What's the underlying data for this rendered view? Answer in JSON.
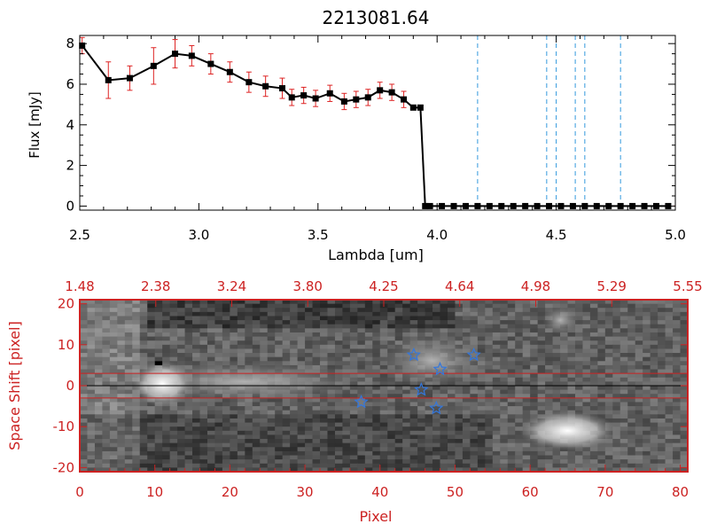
{
  "chart_data": [
    {
      "type": "line",
      "title": "2213081.64",
      "xlabel": "Lambda [um]",
      "ylabel": "Flux [mJy]",
      "xlim": [
        2.5,
        5.0
      ],
      "ylim": [
        -0.2,
        8.4
      ],
      "xticks": [
        "2.5",
        "3.0",
        "3.5",
        "4.0",
        "4.5",
        "5.0"
      ],
      "yticks": [
        "0",
        "2",
        "4",
        "6",
        "8"
      ],
      "series": [
        {
          "color": "#000000",
          "errorbar_color": "#dd2222",
          "x": [
            2.51,
            2.62,
            2.71,
            2.81,
            2.9,
            2.97,
            3.05,
            3.13,
            3.21,
            3.28,
            3.35,
            3.39,
            3.44,
            3.49,
            3.55,
            3.61,
            3.66,
            3.71,
            3.76,
            3.81,
            3.86,
            3.9,
            3.93,
            3.95,
            3.97,
            4.02,
            4.07,
            4.12,
            4.17,
            4.22,
            4.27,
            4.32,
            4.37,
            4.42,
            4.47,
            4.52,
            4.57,
            4.62,
            4.67,
            4.72,
            4.77,
            4.82,
            4.87,
            4.92,
            4.97
          ],
          "y": [
            7.9,
            6.2,
            6.3,
            6.9,
            7.5,
            7.4,
            7.0,
            6.6,
            6.1,
            5.9,
            5.8,
            5.35,
            5.45,
            5.3,
            5.55,
            5.15,
            5.25,
            5.35,
            5.7,
            5.6,
            5.25,
            4.85,
            4.85,
            0.0,
            0.0,
            0.0,
            0.0,
            0.0,
            0.0,
            0.0,
            0.0,
            0.0,
            0.0,
            0.0,
            0.0,
            0.0,
            0.0,
            0.0,
            0.0,
            0.0,
            0.0,
            0.0,
            0.0,
            0.0,
            0.0
          ],
          "yerr": [
            0.4,
            0.9,
            0.6,
            0.9,
            0.7,
            0.5,
            0.5,
            0.5,
            0.5,
            0.5,
            0.5,
            0.4,
            0.4,
            0.4,
            0.4,
            0.4,
            0.4,
            0.4,
            0.4,
            0.4,
            0.4,
            0.0,
            0.0,
            0.0,
            0.0,
            0.0,
            0.0,
            0.0,
            0.0,
            0.0,
            0.0,
            0.0,
            0.0,
            0.0,
            0.0,
            0.0,
            0.0,
            0.0,
            0.0,
            0.0,
            0.0,
            0.0,
            0.0,
            0.0,
            0.0
          ]
        }
      ],
      "vertical_lines": {
        "color": "#3399dd",
        "x": [
          4.17,
          4.46,
          4.5,
          4.58,
          4.62,
          4.77
        ]
      },
      "baseline": {
        "y": 0.0,
        "color": "#dd2222",
        "dashed": true
      }
    },
    {
      "type": "heatmap",
      "xlabel": "Pixel",
      "ylabel": "Space Shift [pixel]",
      "xlim": [
        0,
        81
      ],
      "ylim": [
        -21,
        21
      ],
      "xticks": [
        "0",
        "10",
        "20",
        "30",
        "40",
        "50",
        "60",
        "70",
        "80"
      ],
      "yticks": [
        "-20",
        "-10",
        "0",
        "10",
        "20"
      ],
      "top_axis_ticks": [
        "1.48",
        "2.38",
        "3.24",
        "3.80",
        "4.25",
        "4.64",
        "4.98",
        "5.29",
        "5.55"
      ],
      "axis_color": "#cc2222",
      "horizontal_lines": {
        "color": "#cc2222",
        "y": [
          3,
          -3
        ],
        "center_line_y": 0
      },
      "markers": {
        "symbol": "star",
        "color": "#3377dd",
        "points": [
          {
            "x": 44.5,
            "y": 7.5
          },
          {
            "x": 52.5,
            "y": 7.5
          },
          {
            "x": 48.0,
            "y": 4.0
          },
          {
            "x": 45.5,
            "y": -1.0
          },
          {
            "x": 37.5,
            "y": -4.0
          },
          {
            "x": 47.5,
            "y": -5.5
          }
        ]
      }
    }
  ]
}
